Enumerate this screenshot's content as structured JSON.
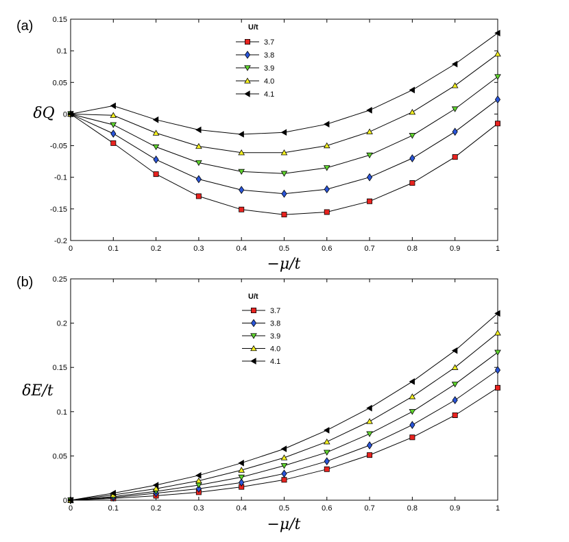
{
  "chart_data": [
    {
      "type": "line",
      "panel_label": "(a)",
      "ylabel": "δQ",
      "xlabel": "−μ/t",
      "xlim": [
        0,
        1
      ],
      "ylim": [
        -0.2,
        0.15
      ],
      "xticks": [
        "0",
        "0.1",
        "0.2",
        "0.3",
        "0.4",
        "0.5",
        "0.6",
        "0.7",
        "0.8",
        "0.9",
        "1"
      ],
      "yticks": [
        "-0.2",
        "-0.15",
        "-0.1",
        "-0.05",
        "0",
        "0.05",
        "0.1",
        "0.15"
      ],
      "legend_title": "U/t",
      "x": [
        0,
        0.1,
        0.2,
        0.3,
        0.4,
        0.5,
        0.6,
        0.7,
        0.8,
        0.9,
        1.0
      ],
      "series": [
        {
          "name": "3.7",
          "marker": "square",
          "color": "#e8231f",
          "values": [
            0,
            -0.046,
            -0.095,
            -0.13,
            -0.151,
            -0.159,
            -0.155,
            -0.138,
            -0.109,
            -0.068,
            -0.015
          ]
        },
        {
          "name": "3.8",
          "marker": "diamond",
          "color": "#2a55d8",
          "values": [
            0,
            -0.031,
            -0.072,
            -0.103,
            -0.12,
            -0.126,
            -0.119,
            -0.1,
            -0.07,
            -0.028,
            0.023
          ]
        },
        {
          "name": "3.9",
          "marker": "triangle-down",
          "color": "#5fd42e",
          "values": [
            0,
            -0.017,
            -0.052,
            -0.077,
            -0.091,
            -0.094,
            -0.085,
            -0.065,
            -0.034,
            0.008,
            0.059
          ]
        },
        {
          "name": "4.0",
          "marker": "triangle-up",
          "color": "#f4f020",
          "values": [
            0,
            -0.002,
            -0.03,
            -0.051,
            -0.061,
            -0.061,
            -0.05,
            -0.028,
            0.003,
            0.045,
            0.095
          ]
        },
        {
          "name": "4.1",
          "marker": "triangle-left",
          "color": "#000000",
          "values": [
            0,
            0.013,
            -0.009,
            -0.025,
            -0.032,
            -0.029,
            -0.016,
            0.006,
            0.038,
            0.079,
            0.128
          ]
        }
      ]
    },
    {
      "type": "line",
      "panel_label": "(b)",
      "ylabel": "δE/t",
      "xlabel": "−μ/t",
      "xlim": [
        0,
        1
      ],
      "ylim": [
        0,
        0.25
      ],
      "xticks": [
        "0",
        "0.1",
        "0.2",
        "0.3",
        "0.4",
        "0.5",
        "0.6",
        "0.7",
        "0.8",
        "0.9",
        "1"
      ],
      "yticks": [
        "0",
        "0.05",
        "0.1",
        "0.15",
        "0.2",
        "0.25"
      ],
      "legend_title": "U/t",
      "x": [
        0,
        0.1,
        0.2,
        0.3,
        0.4,
        0.5,
        0.6,
        0.7,
        0.8,
        0.9,
        1.0
      ],
      "series": [
        {
          "name": "3.7",
          "marker": "square",
          "color": "#e8231f",
          "values": [
            0,
            0.002,
            0.005,
            0.009,
            0.015,
            0.023,
            0.035,
            0.051,
            0.071,
            0.096,
            0.127
          ]
        },
        {
          "name": "3.8",
          "marker": "diamond",
          "color": "#2a55d8",
          "values": [
            0,
            0.003,
            0.008,
            0.013,
            0.02,
            0.03,
            0.044,
            0.062,
            0.085,
            0.113,
            0.147
          ]
        },
        {
          "name": "3.9",
          "marker": "triangle-down",
          "color": "#5fd42e",
          "values": [
            0,
            0.004,
            0.01,
            0.017,
            0.026,
            0.039,
            0.054,
            0.075,
            0.1,
            0.131,
            0.167
          ]
        },
        {
          "name": "4.0",
          "marker": "triangle-up",
          "color": "#f4f020",
          "values": [
            0,
            0.006,
            0.013,
            0.022,
            0.034,
            0.048,
            0.066,
            0.089,
            0.117,
            0.15,
            0.189
          ]
        },
        {
          "name": "4.1",
          "marker": "triangle-left",
          "color": "#000000",
          "values": [
            0,
            0.008,
            0.017,
            0.028,
            0.042,
            0.058,
            0.079,
            0.104,
            0.134,
            0.169,
            0.211
          ]
        }
      ]
    }
  ]
}
